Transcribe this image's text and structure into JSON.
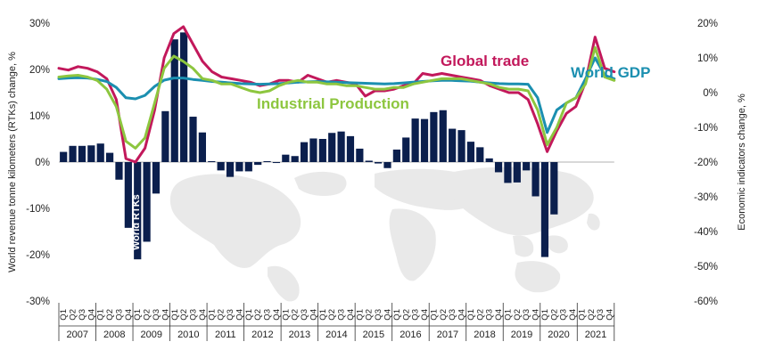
{
  "chart_data": {
    "type": "bar+line",
    "ylabel_left": "World revenue tonne kilometers (RTKs) change, %",
    "ylabel_right": "Economic indicators change, %",
    "left_ticks": [
      "30%",
      "20%",
      "10%",
      "0%",
      "-10%",
      "-20%",
      "-30%"
    ],
    "right_ticks": [
      "20%",
      "10%",
      "0%",
      "-10%",
      "-20%",
      "-30%",
      "-40%",
      "-50%",
      "-60%"
    ],
    "ylim_left": [
      -30,
      30
    ],
    "ylim_right": [
      -60,
      20
    ],
    "quarter_labels": [
      "Q1",
      "Q2",
      "Q3",
      "Q4"
    ],
    "years": [
      "2007",
      "2008",
      "2009",
      "2010",
      "2011",
      "2012",
      "2013",
      "2014",
      "2015",
      "2016",
      "2017",
      "2018",
      "2019",
      "2020",
      "2021"
    ],
    "grid": false,
    "bars": {
      "name": "World RTKs",
      "color": "#0b1f4d",
      "values": [
        2.2,
        3.5,
        3.5,
        3.6,
        4.0,
        2.0,
        -3.8,
        -14.2,
        -21.0,
        -17.2,
        -6.8,
        11.0,
        26.5,
        28.0,
        9.8,
        6.4,
        0.2,
        -1.8,
        -3.2,
        -2.0,
        -2.0,
        -0.6,
        0.2,
        -0.2,
        1.6,
        1.3,
        4.3,
        5.1,
        5.0,
        6.3,
        6.6,
        5.6,
        2.9,
        0.3,
        -0.3,
        -1.3,
        2.7,
        5.3,
        9.4,
        9.3,
        10.8,
        11.2,
        7.2,
        6.9,
        4.4,
        3.2,
        0.8,
        -2.2,
        -4.5,
        -4.4,
        -1.8,
        -7.4,
        -20.5,
        -11.3
      ]
    },
    "series": [
      {
        "name": "Global trade",
        "color": "#c2185b",
        "axis": "right",
        "values": [
          7,
          6.5,
          7.5,
          7,
          6,
          4,
          -2,
          -19,
          -20,
          -16,
          -5,
          10,
          17,
          19,
          14,
          9,
          6,
          4.5,
          4,
          3.5,
          3,
          2,
          2.5,
          3.5,
          3.5,
          3,
          5,
          4,
          3,
          3.5,
          3,
          2.5,
          -1,
          0.5,
          0.5,
          1,
          2,
          2.5,
          5.5,
          5,
          5.5,
          5,
          4.5,
          4,
          3.5,
          2,
          1,
          0,
          0,
          -2,
          -9,
          -17,
          -11,
          -6,
          -4,
          3,
          16,
          7,
          6
        ]
      },
      {
        "name": "World GDP",
        "color": "#1b8fb0",
        "axis": "right",
        "values": [
          4,
          4.2,
          4.3,
          4.2,
          3.8,
          3.2,
          1.5,
          -1.5,
          -1.8,
          -0.8,
          1.8,
          3.6,
          4.2,
          4.2,
          3.8,
          3.5,
          3.2,
          3.0,
          2.8,
          2.6,
          2.5,
          2.4,
          2.5,
          2.6,
          2.8,
          3.0,
          3.1,
          3.2,
          3.1,
          3.0,
          2.9,
          2.8,
          2.7,
          2.6,
          2.5,
          2.6,
          2.8,
          3.0,
          3.2,
          3.4,
          3.5,
          3.5,
          3.4,
          3.3,
          3.0,
          2.8,
          2.6,
          2.5,
          2.5,
          2.4,
          -1.5,
          -11.5,
          -5,
          -3,
          -1.5,
          4,
          10,
          5,
          4
        ]
      },
      {
        "name": "Industrial Production",
        "color": "#8dc63f",
        "axis": "right",
        "values": [
          4.5,
          4.8,
          5,
          4.5,
          3.5,
          1,
          -4,
          -14,
          -16,
          -13,
          -3,
          7,
          10.5,
          9,
          7,
          4,
          3.5,
          2.5,
          2.5,
          1.5,
          0.5,
          0,
          0.5,
          2,
          3,
          3.5,
          3,
          3,
          2.5,
          2.5,
          2,
          2,
          1.5,
          1,
          1,
          1.5,
          1.5,
          2.5,
          3,
          3.5,
          4,
          4,
          4,
          3.5,
          3,
          2.5,
          1.5,
          1,
          1,
          0.5,
          -5,
          -15,
          -10,
          -3,
          -1.5,
          2.5,
          13,
          4.5,
          3.5
        ]
      }
    ]
  },
  "labels": {
    "global_trade": "Global trade",
    "world_gdp": "World GDP",
    "industrial_production": "Industrial Production",
    "world_rtks": "World RTKs"
  }
}
